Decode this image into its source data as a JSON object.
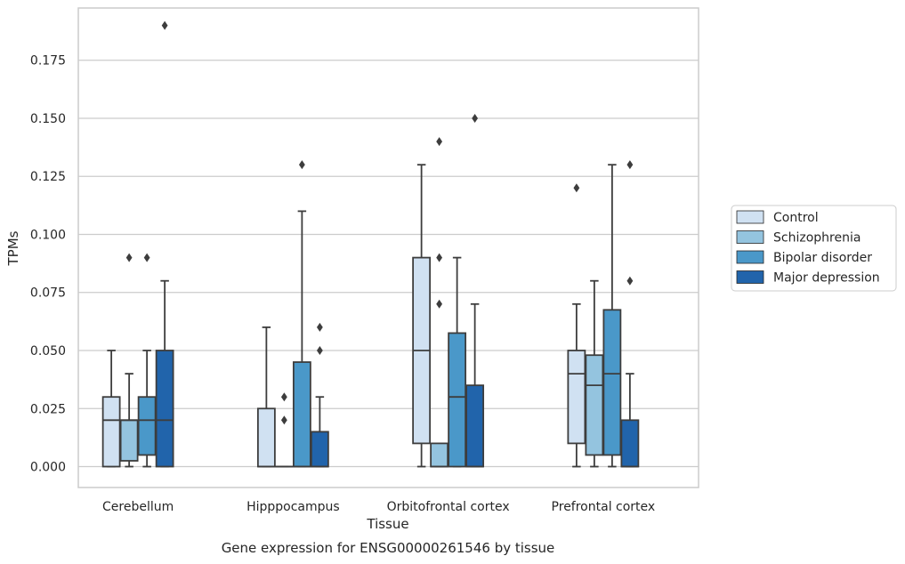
{
  "chart_data": {
    "type": "box",
    "title": "",
    "caption": "Gene expression for ENSG00000261546 by tissue",
    "xlabel": "Tissue",
    "ylabel": "TPMs",
    "ylim": [
      -0.009,
      0.1975
    ],
    "yticks": [
      "0.000",
      "0.025",
      "0.050",
      "0.075",
      "0.100",
      "0.125",
      "0.150",
      "0.175"
    ],
    "grid": "horizontal",
    "legend_position": "right",
    "categories": [
      "Cerebellum",
      "Hipppocampus",
      "Orbitofrontal cortex",
      "Prefrontal cortex"
    ],
    "series": [
      {
        "name": "Control",
        "color": "#d0e1f2",
        "boxes": [
          {
            "whisker_low": 0.0,
            "q1": 0.0,
            "median": 0.02,
            "q3": 0.03,
            "whisker_high": 0.05,
            "outliers": []
          },
          {
            "whisker_low": 0.0,
            "q1": 0.0,
            "median": 0.0,
            "q3": 0.025,
            "whisker_high": 0.06,
            "outliers": []
          },
          {
            "whisker_low": 0.0,
            "q1": 0.01,
            "median": 0.05,
            "q3": 0.09,
            "whisker_high": 0.13,
            "outliers": []
          },
          {
            "whisker_low": 0.0,
            "q1": 0.01,
            "median": 0.04,
            "q3": 0.05,
            "whisker_high": 0.07,
            "outliers": [
              0.12
            ]
          }
        ]
      },
      {
        "name": "Schizophrenia",
        "color": "#94c4df",
        "boxes": [
          {
            "whisker_low": 0.0,
            "q1": 0.0025,
            "median": 0.02,
            "q3": 0.02,
            "whisker_high": 0.04,
            "outliers": [
              0.09
            ]
          },
          {
            "whisker_low": 0.0,
            "q1": 0.0,
            "median": 0.0,
            "q3": 0.0,
            "whisker_high": 0.0,
            "outliers": [
              0.02,
              0.03
            ]
          },
          {
            "whisker_low": 0.0,
            "q1": 0.0,
            "median": 0.0,
            "q3": 0.01,
            "whisker_high": 0.01,
            "outliers": [
              0.07,
              0.09,
              0.14
            ]
          },
          {
            "whisker_low": 0.0,
            "q1": 0.005,
            "median": 0.035,
            "q3": 0.048,
            "whisker_high": 0.08,
            "outliers": []
          }
        ]
      },
      {
        "name": "Bipolar disorder",
        "color": "#4a98c9",
        "boxes": [
          {
            "whisker_low": 0.0,
            "q1": 0.005,
            "median": 0.02,
            "q3": 0.03,
            "whisker_high": 0.05,
            "outliers": [
              0.09
            ]
          },
          {
            "whisker_low": 0.0,
            "q1": 0.0,
            "median": 0.0,
            "q3": 0.045,
            "whisker_high": 0.11,
            "outliers": [
              0.13
            ]
          },
          {
            "whisker_low": 0.0,
            "q1": 0.0,
            "median": 0.03,
            "q3": 0.0575,
            "whisker_high": 0.09,
            "outliers": []
          },
          {
            "whisker_low": 0.0,
            "q1": 0.005,
            "median": 0.04,
            "q3": 0.0675,
            "whisker_high": 0.13,
            "outliers": []
          }
        ]
      },
      {
        "name": "Major depression",
        "color": "#2164ab",
        "boxes": [
          {
            "whisker_low": 0.0,
            "q1": 0.0,
            "median": 0.02,
            "q3": 0.05,
            "whisker_high": 0.08,
            "outliers": [
              0.19
            ]
          },
          {
            "whisker_low": 0.0,
            "q1": 0.0,
            "median": 0.0,
            "q3": 0.015,
            "whisker_high": 0.03,
            "outliers": [
              0.05,
              0.06
            ]
          },
          {
            "whisker_low": 0.0,
            "q1": 0.0,
            "median": 0.0,
            "q3": 0.035,
            "whisker_high": 0.07,
            "outliers": [
              0.15
            ]
          },
          {
            "whisker_low": 0.0,
            "q1": 0.0,
            "median": 0.0,
            "q3": 0.02,
            "whisker_high": 0.04,
            "outliers": [
              0.08,
              0.13
            ]
          }
        ]
      }
    ]
  }
}
